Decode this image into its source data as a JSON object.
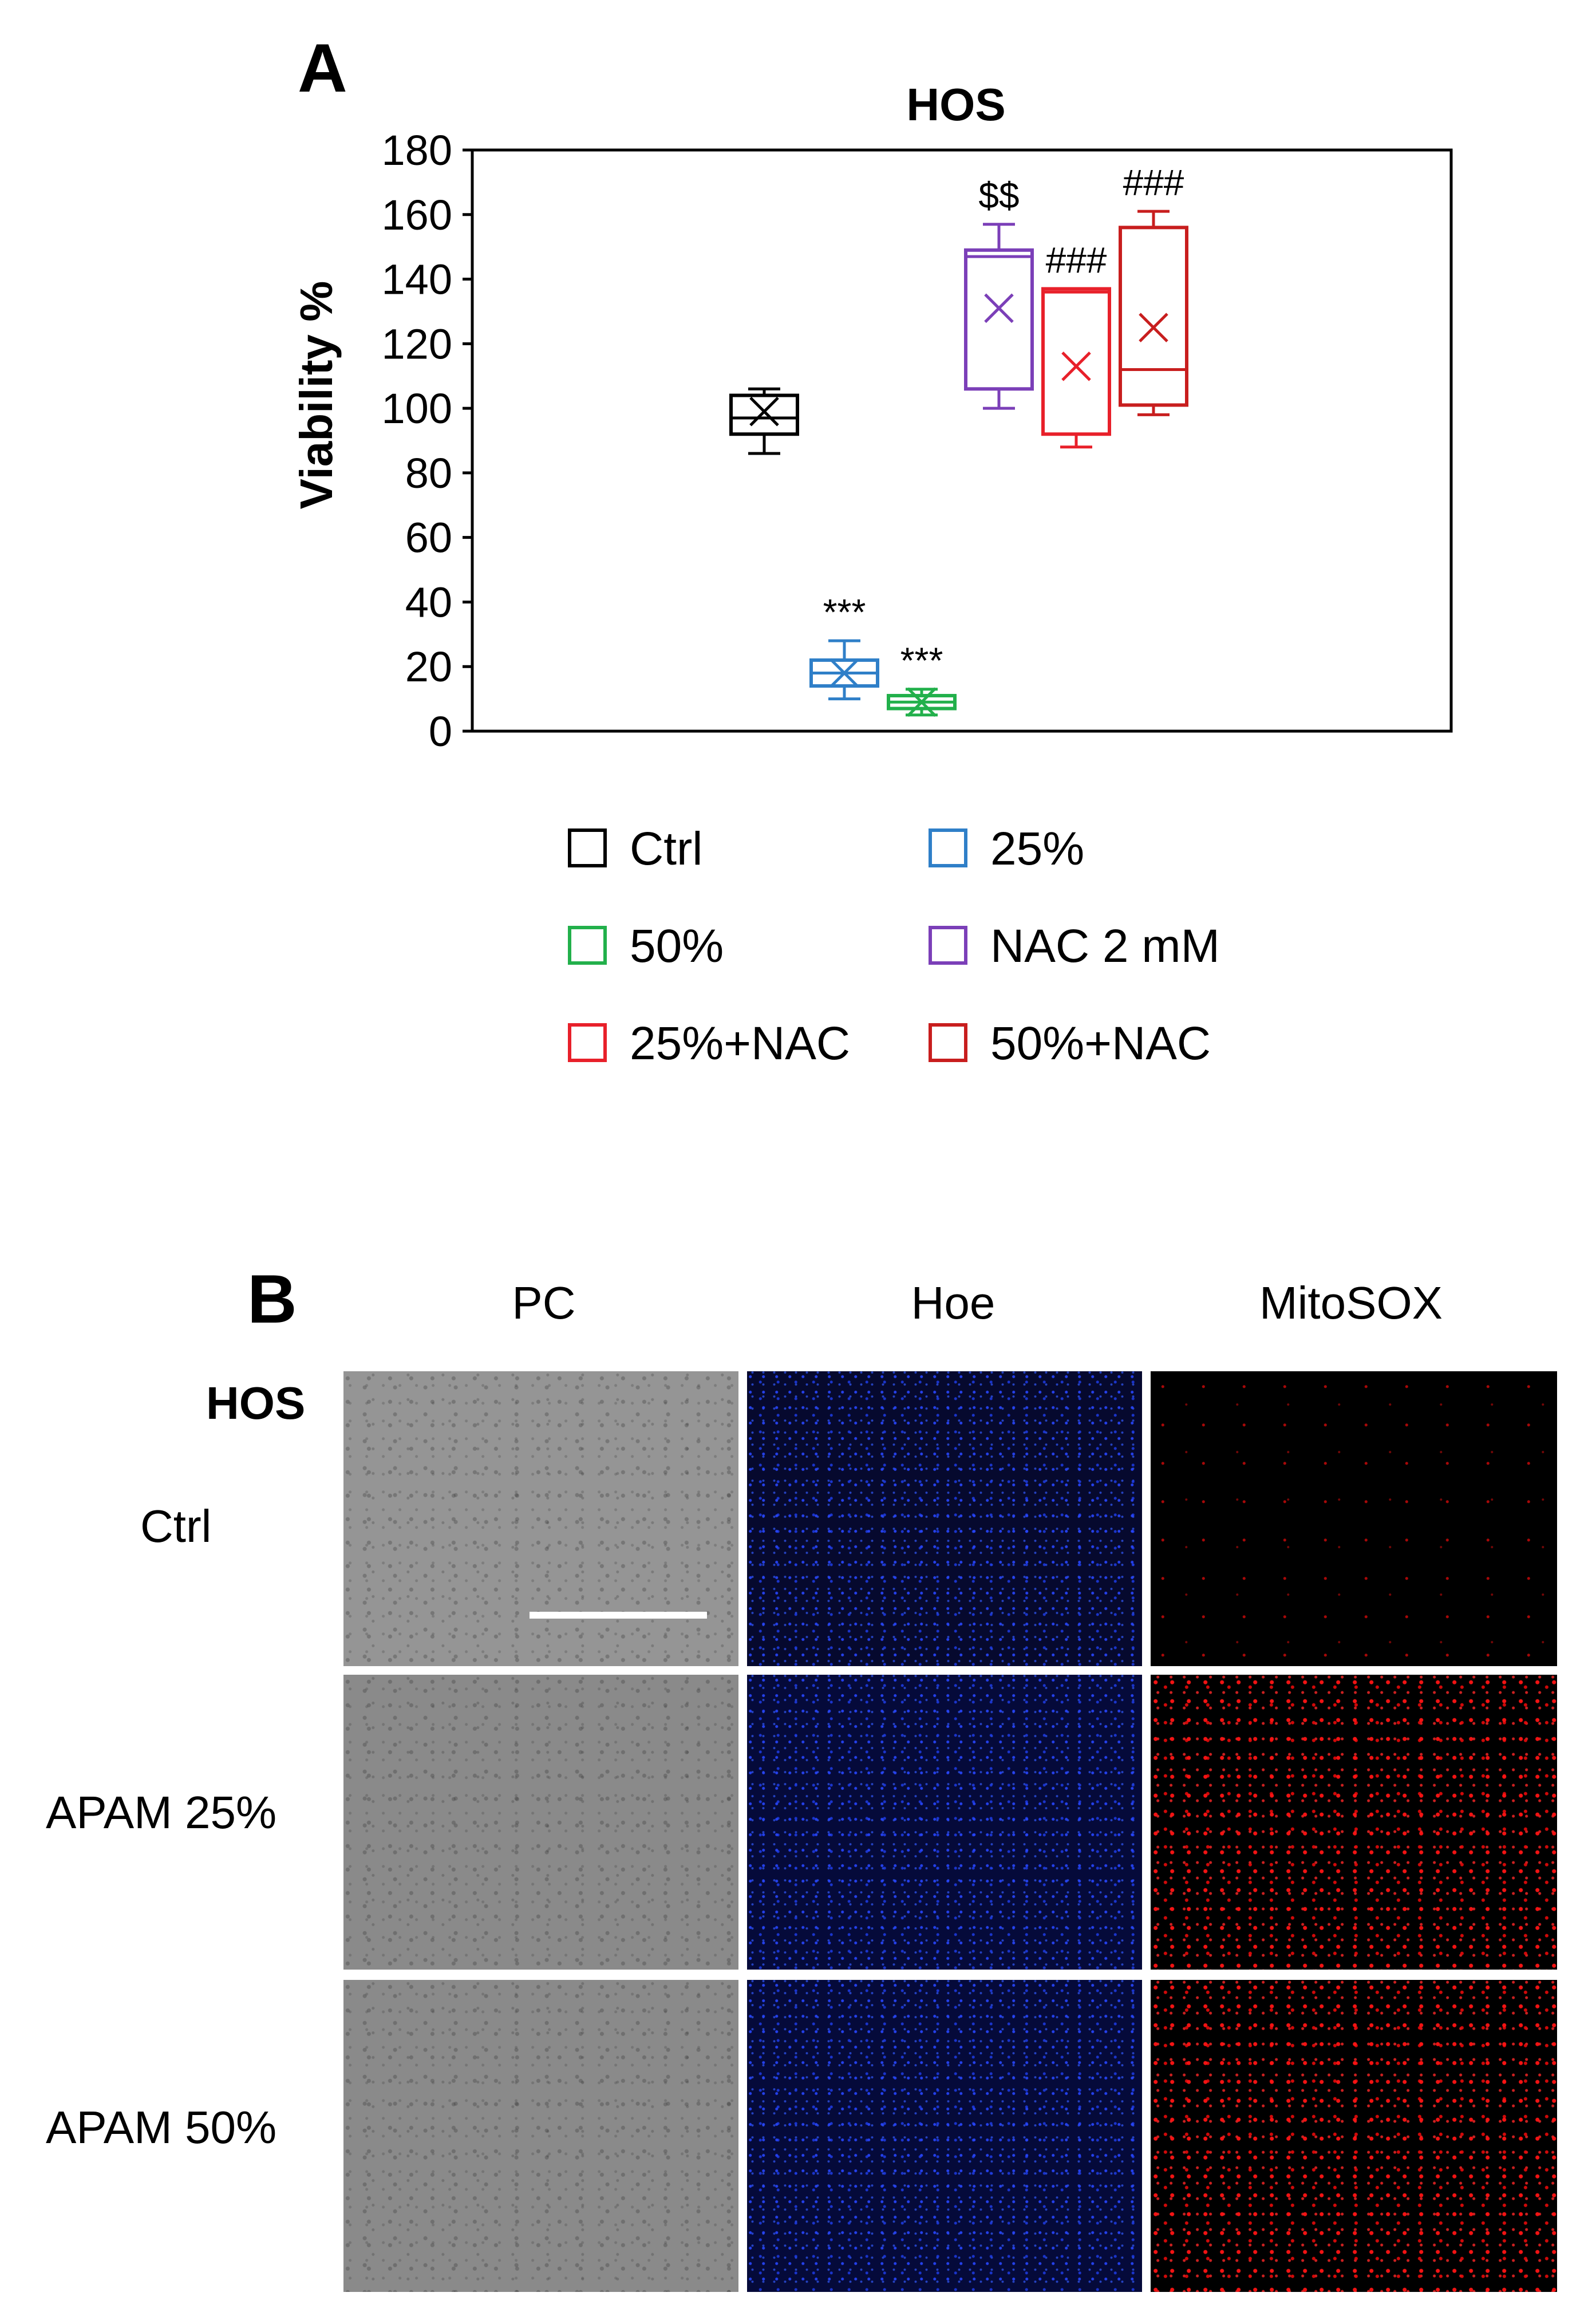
{
  "panel_a_letter": "A",
  "panel_b_letter": "B",
  "chart_data": {
    "type": "box",
    "title": "HOS",
    "ylabel": "Viability %",
    "xlabel": "",
    "ylim": [
      0,
      180
    ],
    "yticks": [
      0,
      20,
      40,
      60,
      80,
      100,
      120,
      140,
      160,
      180
    ],
    "grid": false,
    "legend_position": "bottom",
    "series": [
      {
        "name": "Ctrl",
        "color": "#000000",
        "min": 86,
        "q1": 92,
        "median": 97,
        "q3": 104,
        "max": 106,
        "mean": 99,
        "annotation": ""
      },
      {
        "name": "25%",
        "color": "#2f7fc8",
        "min": 10,
        "q1": 14,
        "median": 18,
        "q3": 22,
        "max": 28,
        "mean": 18,
        "annotation": "***"
      },
      {
        "name": "50%",
        "color": "#22b04b",
        "min": 5,
        "q1": 7,
        "median": 9,
        "q3": 11,
        "max": 13,
        "mean": 9,
        "annotation": "***"
      },
      {
        "name": "NAC 2 mM",
        "color": "#7b3fb8",
        "min": 100,
        "q1": 106,
        "median": 147,
        "q3": 149,
        "max": 157,
        "mean": 131,
        "annotation": "$$"
      },
      {
        "name": "25%+NAC",
        "color": "#e8202a",
        "min": 88,
        "q1": 92,
        "median": 136,
        "q3": 137,
        "max": 137,
        "mean": 113,
        "annotation": "###"
      },
      {
        "name": "50%+NAC",
        "color": "#c81e1e",
        "min": 98,
        "q1": 101,
        "median": 112,
        "q3": 156,
        "max": 161,
        "mean": 125,
        "annotation": "###"
      }
    ]
  },
  "panel_b": {
    "columns": [
      "PC",
      "Hoe",
      "MitoSOX"
    ],
    "cell_line_label": "HOS",
    "rows": [
      "Ctrl",
      "APAM 25%",
      "APAM 50%"
    ]
  }
}
